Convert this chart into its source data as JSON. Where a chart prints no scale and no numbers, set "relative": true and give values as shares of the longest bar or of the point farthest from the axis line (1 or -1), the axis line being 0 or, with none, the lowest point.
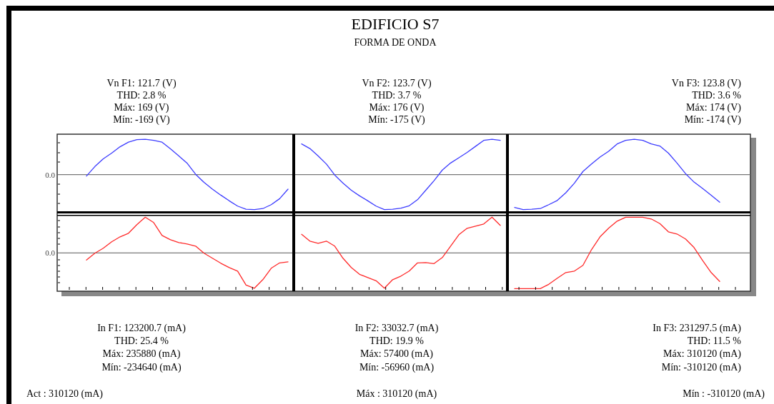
{
  "chart_data": [
    {
      "type": "other",
      "title": "EDIFICIO S7",
      "subtitle": "FORMA DE ONDA",
      "annotations": [
        "Act : 310120 (mA)",
        "Máx : 310120 (mA)",
        "Mín : -310120 (mA)"
      ]
    },
    {
      "type": "line",
      "relative": true,
      "categories": [
        null,
        null,
        null,
        null,
        null,
        null,
        null,
        null,
        null,
        null,
        null,
        null,
        null,
        null,
        null,
        null,
        null,
        null,
        null,
        null,
        null,
        null,
        null,
        null,
        null
      ],
      "ref_lines": [
        {
          "axis": "y",
          "value": 0,
          "label": "0.0"
        }
      ],
      "annotations": [
        "Vn F1: 121.7 (V)",
        "THD: 2.8 %",
        "Máx: 169 (V)",
        "Mín: -169 (V)"
      ],
      "series": [
        {
          "color": "#3c3cff",
          "values": [
            -0.04,
            0.23,
            0.45,
            0.61,
            0.79,
            0.92,
            0.99,
            1.0,
            0.97,
            0.92,
            0.73,
            0.53,
            0.32,
            0.01,
            -0.22,
            -0.41,
            -0.58,
            -0.74,
            -0.89,
            -0.98,
            -0.99,
            -0.96,
            -0.85,
            -0.68,
            -0.41
          ]
        }
      ]
    },
    {
      "type": "line",
      "relative": true,
      "categories": [
        null,
        null,
        null,
        null,
        null,
        null,
        null,
        null,
        null,
        null,
        null,
        null,
        null,
        null,
        null,
        null,
        null,
        null,
        null,
        null,
        null,
        null,
        null,
        null,
        null
      ],
      "ref_lines": [
        {
          "axis": "y",
          "value": 0
        }
      ],
      "annotations": [
        "Vn F2: 123.7 (V)",
        "THD: 3.7 %",
        "Máx: 176 (V)",
        "Mín: -175 (V)"
      ],
      "series": [
        {
          "color": "#3c3cff",
          "values": [
            0.87,
            0.74,
            0.53,
            0.3,
            -0.01,
            -0.24,
            -0.44,
            -0.6,
            -0.74,
            -0.89,
            -0.99,
            -0.98,
            -0.95,
            -0.88,
            -0.71,
            -0.44,
            -0.17,
            0.13,
            0.33,
            0.48,
            0.63,
            0.8,
            0.97,
            1.0,
            0.97
          ]
        }
      ]
    },
    {
      "type": "line",
      "relative": true,
      "categories": [
        null,
        null,
        null,
        null,
        null,
        null,
        null,
        null,
        null,
        null,
        null,
        null,
        null,
        null,
        null,
        null,
        null,
        null,
        null,
        null,
        null,
        null,
        null,
        null,
        null
      ],
      "ref_lines": [
        {
          "axis": "y",
          "value": 0
        }
      ],
      "annotations": [
        "Vn F3: 123.8 (V)",
        "THD: 3.6 %",
        "Máx: 174 (V)",
        "Mín: -174 (V)"
      ],
      "series": [
        {
          "color": "#3c3cff",
          "values": [
            -0.93,
            -0.99,
            -0.98,
            -0.96,
            -0.85,
            -0.73,
            -0.51,
            -0.24,
            0.09,
            0.3,
            0.5,
            0.66,
            0.87,
            0.97,
            1.0,
            0.97,
            0.87,
            0.81,
            0.61,
            0.33,
            0.03,
            -0.21,
            -0.39,
            -0.58,
            -0.78
          ]
        }
      ]
    },
    {
      "type": "line",
      "relative": true,
      "categories": [
        null,
        null,
        null,
        null,
        null,
        null,
        null,
        null,
        null,
        null,
        null,
        null,
        null,
        null,
        null,
        null,
        null,
        null,
        null,
        null,
        null,
        null,
        null,
        null,
        null
      ],
      "ref_lines": [
        {
          "axis": "y",
          "value": 0,
          "label": "0.0"
        }
      ],
      "annotations": [
        "In F1: 123200.7 (mA)",
        "THD: 25.4 %",
        "Máx: 235880 (mA)",
        "Mín: -234640 (mA)"
      ],
      "series": [
        {
          "color": "#ff2a2a",
          "values": [
            -0.2,
            -0.01,
            0.13,
            0.31,
            0.45,
            0.55,
            0.79,
            1.0,
            0.85,
            0.49,
            0.37,
            0.29,
            0.25,
            0.19,
            -0.01,
            -0.15,
            -0.29,
            -0.41,
            -0.51,
            -0.9,
            -0.99,
            -0.75,
            -0.43,
            -0.28,
            -0.25
          ]
        }
      ]
    },
    {
      "type": "line",
      "relative": true,
      "categories": [
        null,
        null,
        null,
        null,
        null,
        null,
        null,
        null,
        null,
        null,
        null,
        null,
        null,
        null,
        null,
        null,
        null,
        null,
        null,
        null,
        null,
        null,
        null,
        null,
        null
      ],
      "ref_lines": [
        {
          "axis": "y",
          "value": 0
        }
      ],
      "annotations": [
        "In F2: 33032.7 (mA)",
        "THD: 19.9 %",
        "Máx: 57400 (mA)",
        "Mín: -56960 (mA)"
      ],
      "series": [
        {
          "color": "#ff2a2a",
          "values": [
            0.52,
            0.33,
            0.27,
            0.33,
            0.19,
            -0.15,
            -0.41,
            -0.6,
            -0.69,
            -0.78,
            -0.99,
            -0.75,
            -0.65,
            -0.51,
            -0.28,
            -0.27,
            -0.3,
            -0.13,
            0.19,
            0.51,
            0.69,
            0.75,
            0.81,
            1.0,
            0.77
          ]
        }
      ]
    },
    {
      "type": "line",
      "relative": true,
      "categories": [
        null,
        null,
        null,
        null,
        null,
        null,
        null,
        null,
        null,
        null,
        null,
        null,
        null,
        null,
        null,
        null,
        null,
        null,
        null,
        null,
        null,
        null,
        null,
        null,
        null
      ],
      "ref_lines": [
        {
          "axis": "y",
          "value": 0
        }
      ],
      "annotations": [
        "In F3: 231297.5 (mA)",
        "THD: 11.5 %",
        "Máx: 310120 (mA)",
        "Mín: -310120 (mA)"
      ],
      "series": [
        {
          "color": "#ff2a2a",
          "values": [
            -1,
            -1,
            -1,
            -1,
            -0.88,
            -0.71,
            -0.55,
            -0.51,
            -0.35,
            0.09,
            0.45,
            0.69,
            0.89,
            1,
            1,
            1,
            0.95,
            0.82,
            0.59,
            0.53,
            0.39,
            0.15,
            -0.21,
            -0.55,
            -0.8
          ]
        }
      ]
    }
  ]
}
